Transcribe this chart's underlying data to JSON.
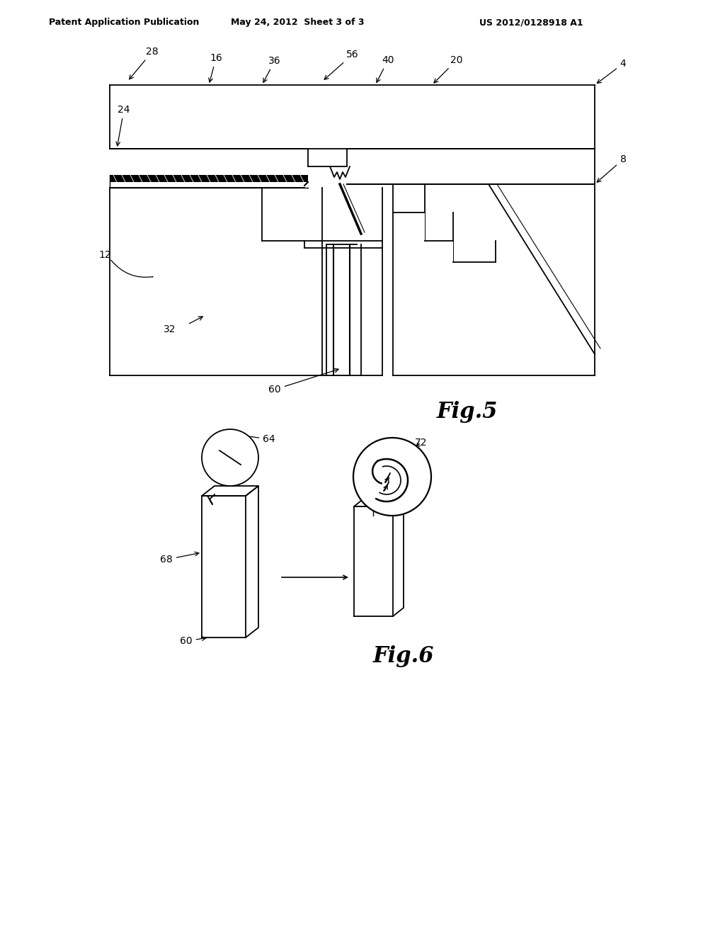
{
  "bg_color": "#ffffff",
  "header_text1": "Patent Application Publication",
  "header_text2": "May 24, 2012  Sheet 3 of 3",
  "header_text3": "US 2012/0128918 A1",
  "fig5_label": "Fig.5",
  "fig6_label": "Fig.6"
}
